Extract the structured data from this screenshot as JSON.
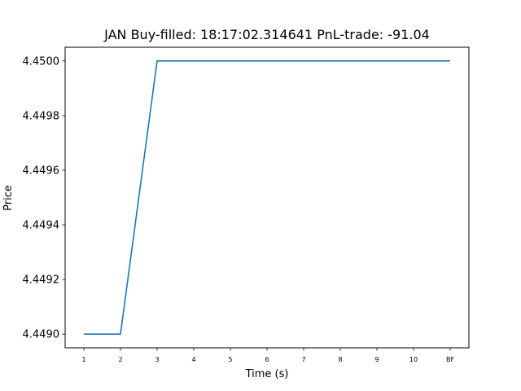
{
  "chart_data": {
    "type": "line",
    "title": "JAN  Buy-filled:  18:17:02.314641  PnL-trade:  -91.04",
    "xlabel": "Time (s)",
    "ylabel": "Price",
    "categories": [
      "1",
      "2",
      "3",
      "4",
      "5",
      "6",
      "7",
      "8",
      "9",
      "10",
      "BF"
    ],
    "series": [
      {
        "values": [
          4.449,
          4.449,
          4.45,
          4.45,
          4.45,
          4.45,
          4.45,
          4.45,
          4.45,
          4.45,
          4.45
        ],
        "color": "#1f77b4"
      }
    ],
    "ylim": [
      4.44895,
      4.45005
    ],
    "yticks": [
      "4.4490",
      "4.4492",
      "4.4494",
      "4.4496",
      "4.4498",
      "4.4500"
    ],
    "grid": false,
    "legend": "none"
  }
}
